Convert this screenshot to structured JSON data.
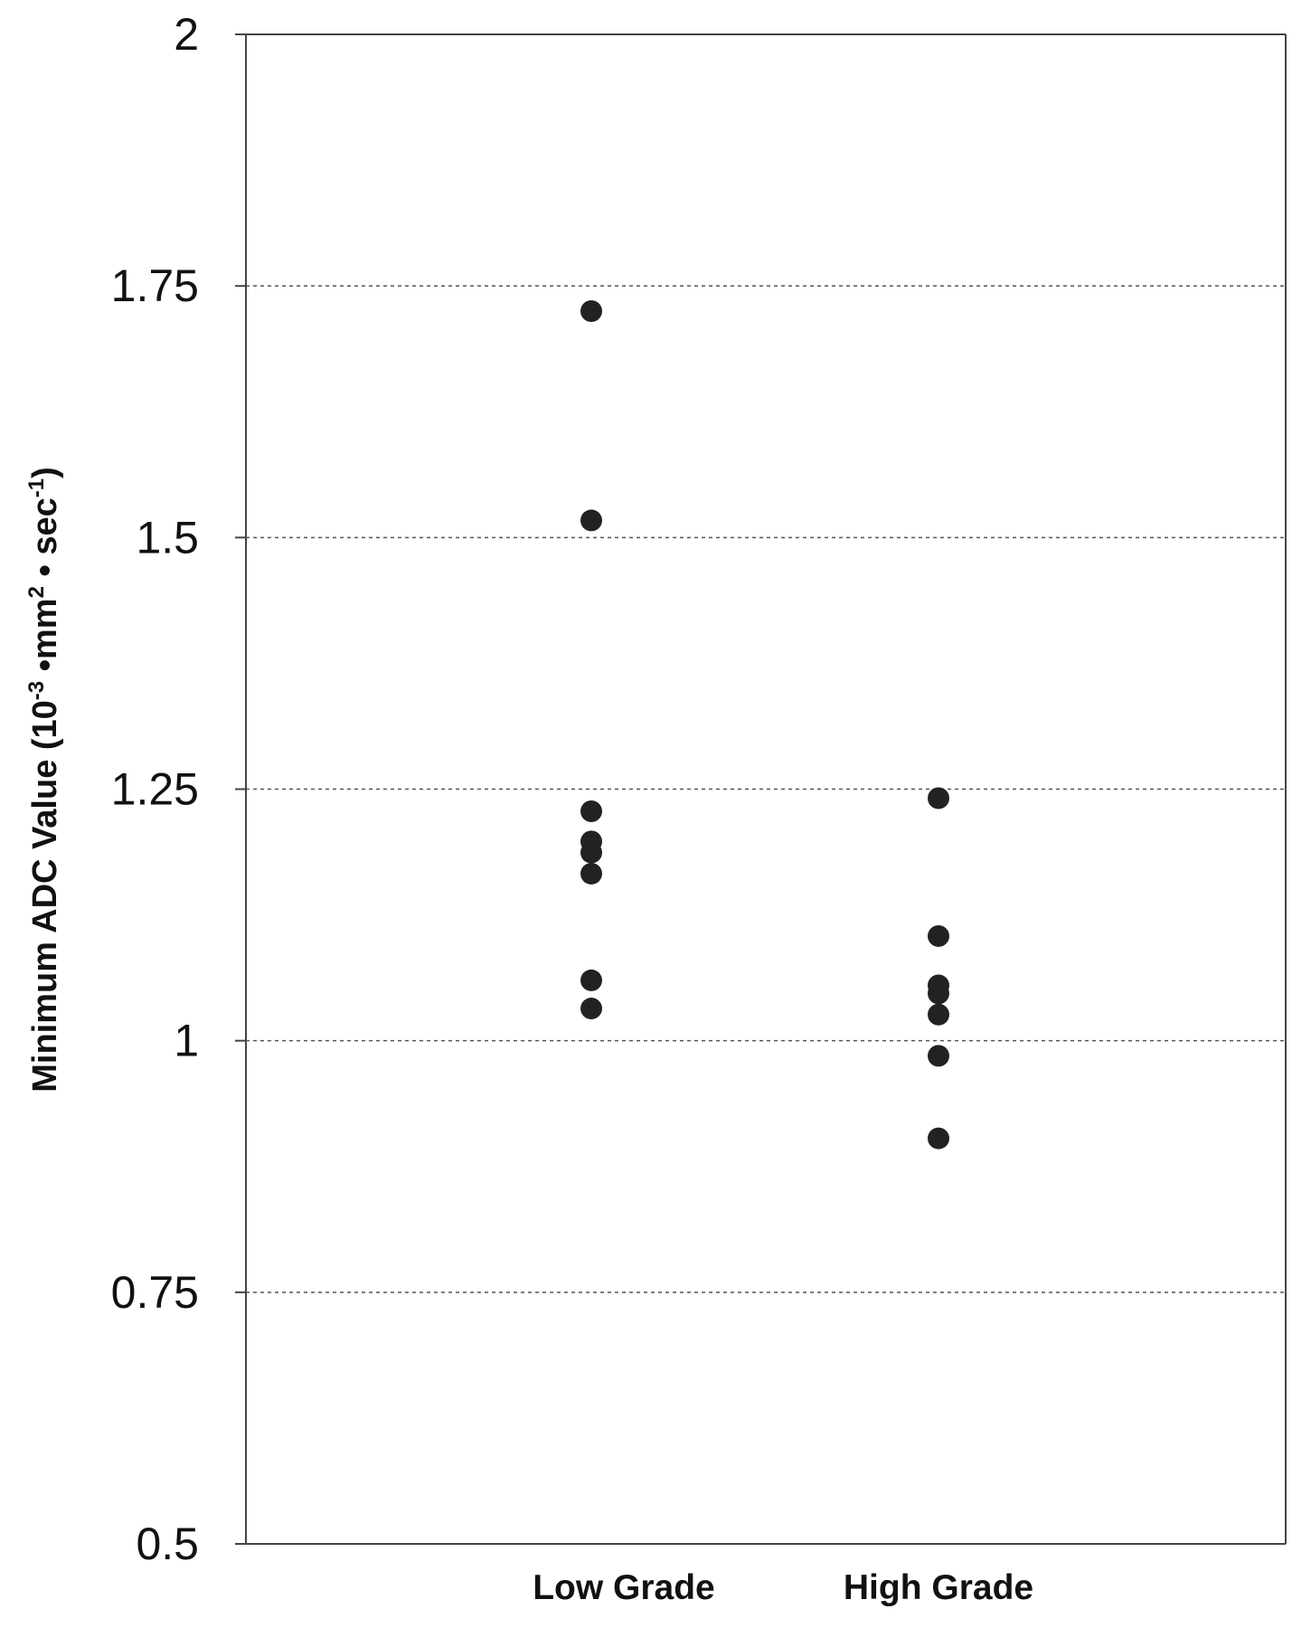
{
  "chart_data": {
    "type": "scatter",
    "categories": [
      "Low Grade",
      "High Grade"
    ],
    "series": [
      {
        "category": "Low Grade",
        "values": [
          1.725,
          1.517,
          1.228,
          1.198,
          1.187,
          1.166,
          1.06,
          1.032
        ]
      },
      {
        "category": "High Grade",
        "values": [
          1.241,
          1.104,
          1.055,
          1.047,
          1.026,
          0.985,
          0.903
        ]
      }
    ],
    "ylabel": {
      "base": "Minimum ADC Value (10",
      "exp1": "-3",
      "mid": " •mm",
      "exp2": "2",
      "mid2": " • sec",
      "exp3": "-1",
      "end": ")"
    },
    "xlabel": "",
    "ylim": [
      0.5,
      2
    ],
    "yticks": [
      0.5,
      0.75,
      1,
      1.25,
      1.5,
      1.75,
      2
    ],
    "ytick_labels": [
      "0.5",
      "0.75",
      "1",
      "1.25",
      "1.5",
      "1.75",
      "2"
    ],
    "grid": "horizontal dotted",
    "marker_color": "#222222",
    "grid_color": "#555555",
    "axis_color": "#444444"
  }
}
